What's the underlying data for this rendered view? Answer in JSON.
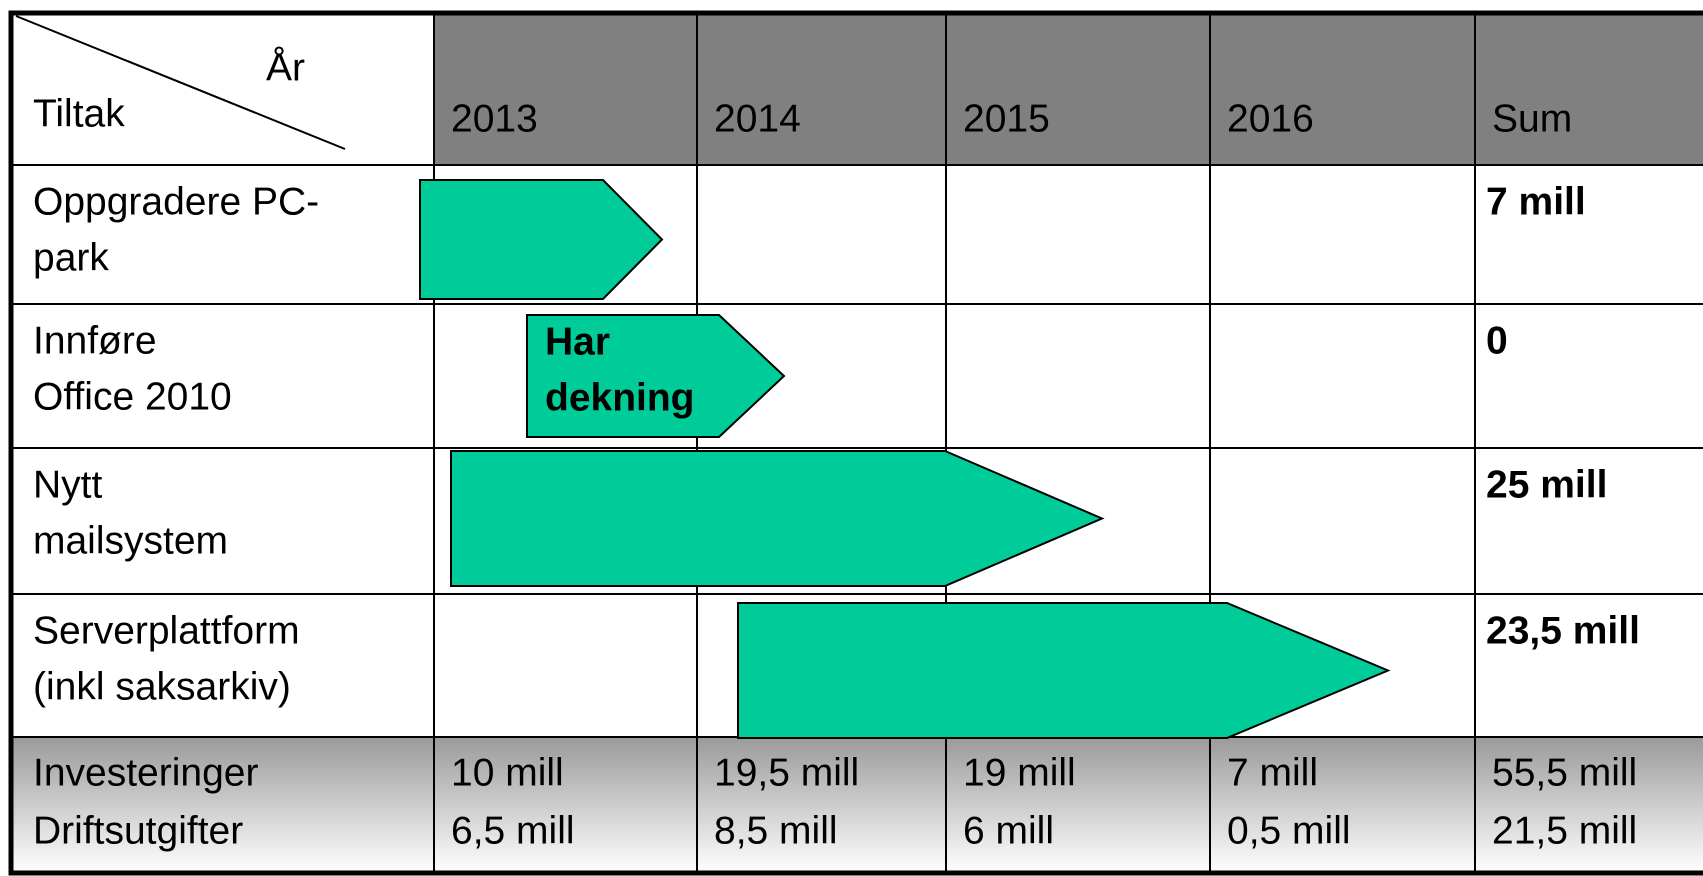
{
  "header": {
    "corner_top": "År",
    "corner_bottom": "Tiltak",
    "columns": [
      "2013",
      "2014",
      "2015",
      "2016",
      "Sum"
    ]
  },
  "rows": [
    {
      "label": [
        "Oppgradere PC-",
        "park"
      ],
      "sum": "7 mill"
    },
    {
      "label": [
        "Innføre",
        "Office 2010"
      ],
      "sum": "0",
      "bar_label": [
        "Har",
        "dekning"
      ]
    },
    {
      "label": [
        "Nytt",
        "mailsystem"
      ],
      "sum": "25 mill"
    },
    {
      "label": [
        "Serverplattform",
        "(inkl saksarkiv)"
      ],
      "sum": "23,5 mill"
    }
  ],
  "footer": {
    "label": [
      "Investeringer",
      "Driftsutgifter"
    ],
    "cells": [
      [
        "10 mill",
        "6,5 mill"
      ],
      [
        "19,5 mill",
        "8,5 mill"
      ],
      [
        "19 mill",
        "6 mill"
      ],
      [
        "7 mill",
        "0,5 mill"
      ],
      [
        "55,5 mill",
        "21,5 mill"
      ]
    ]
  }
}
